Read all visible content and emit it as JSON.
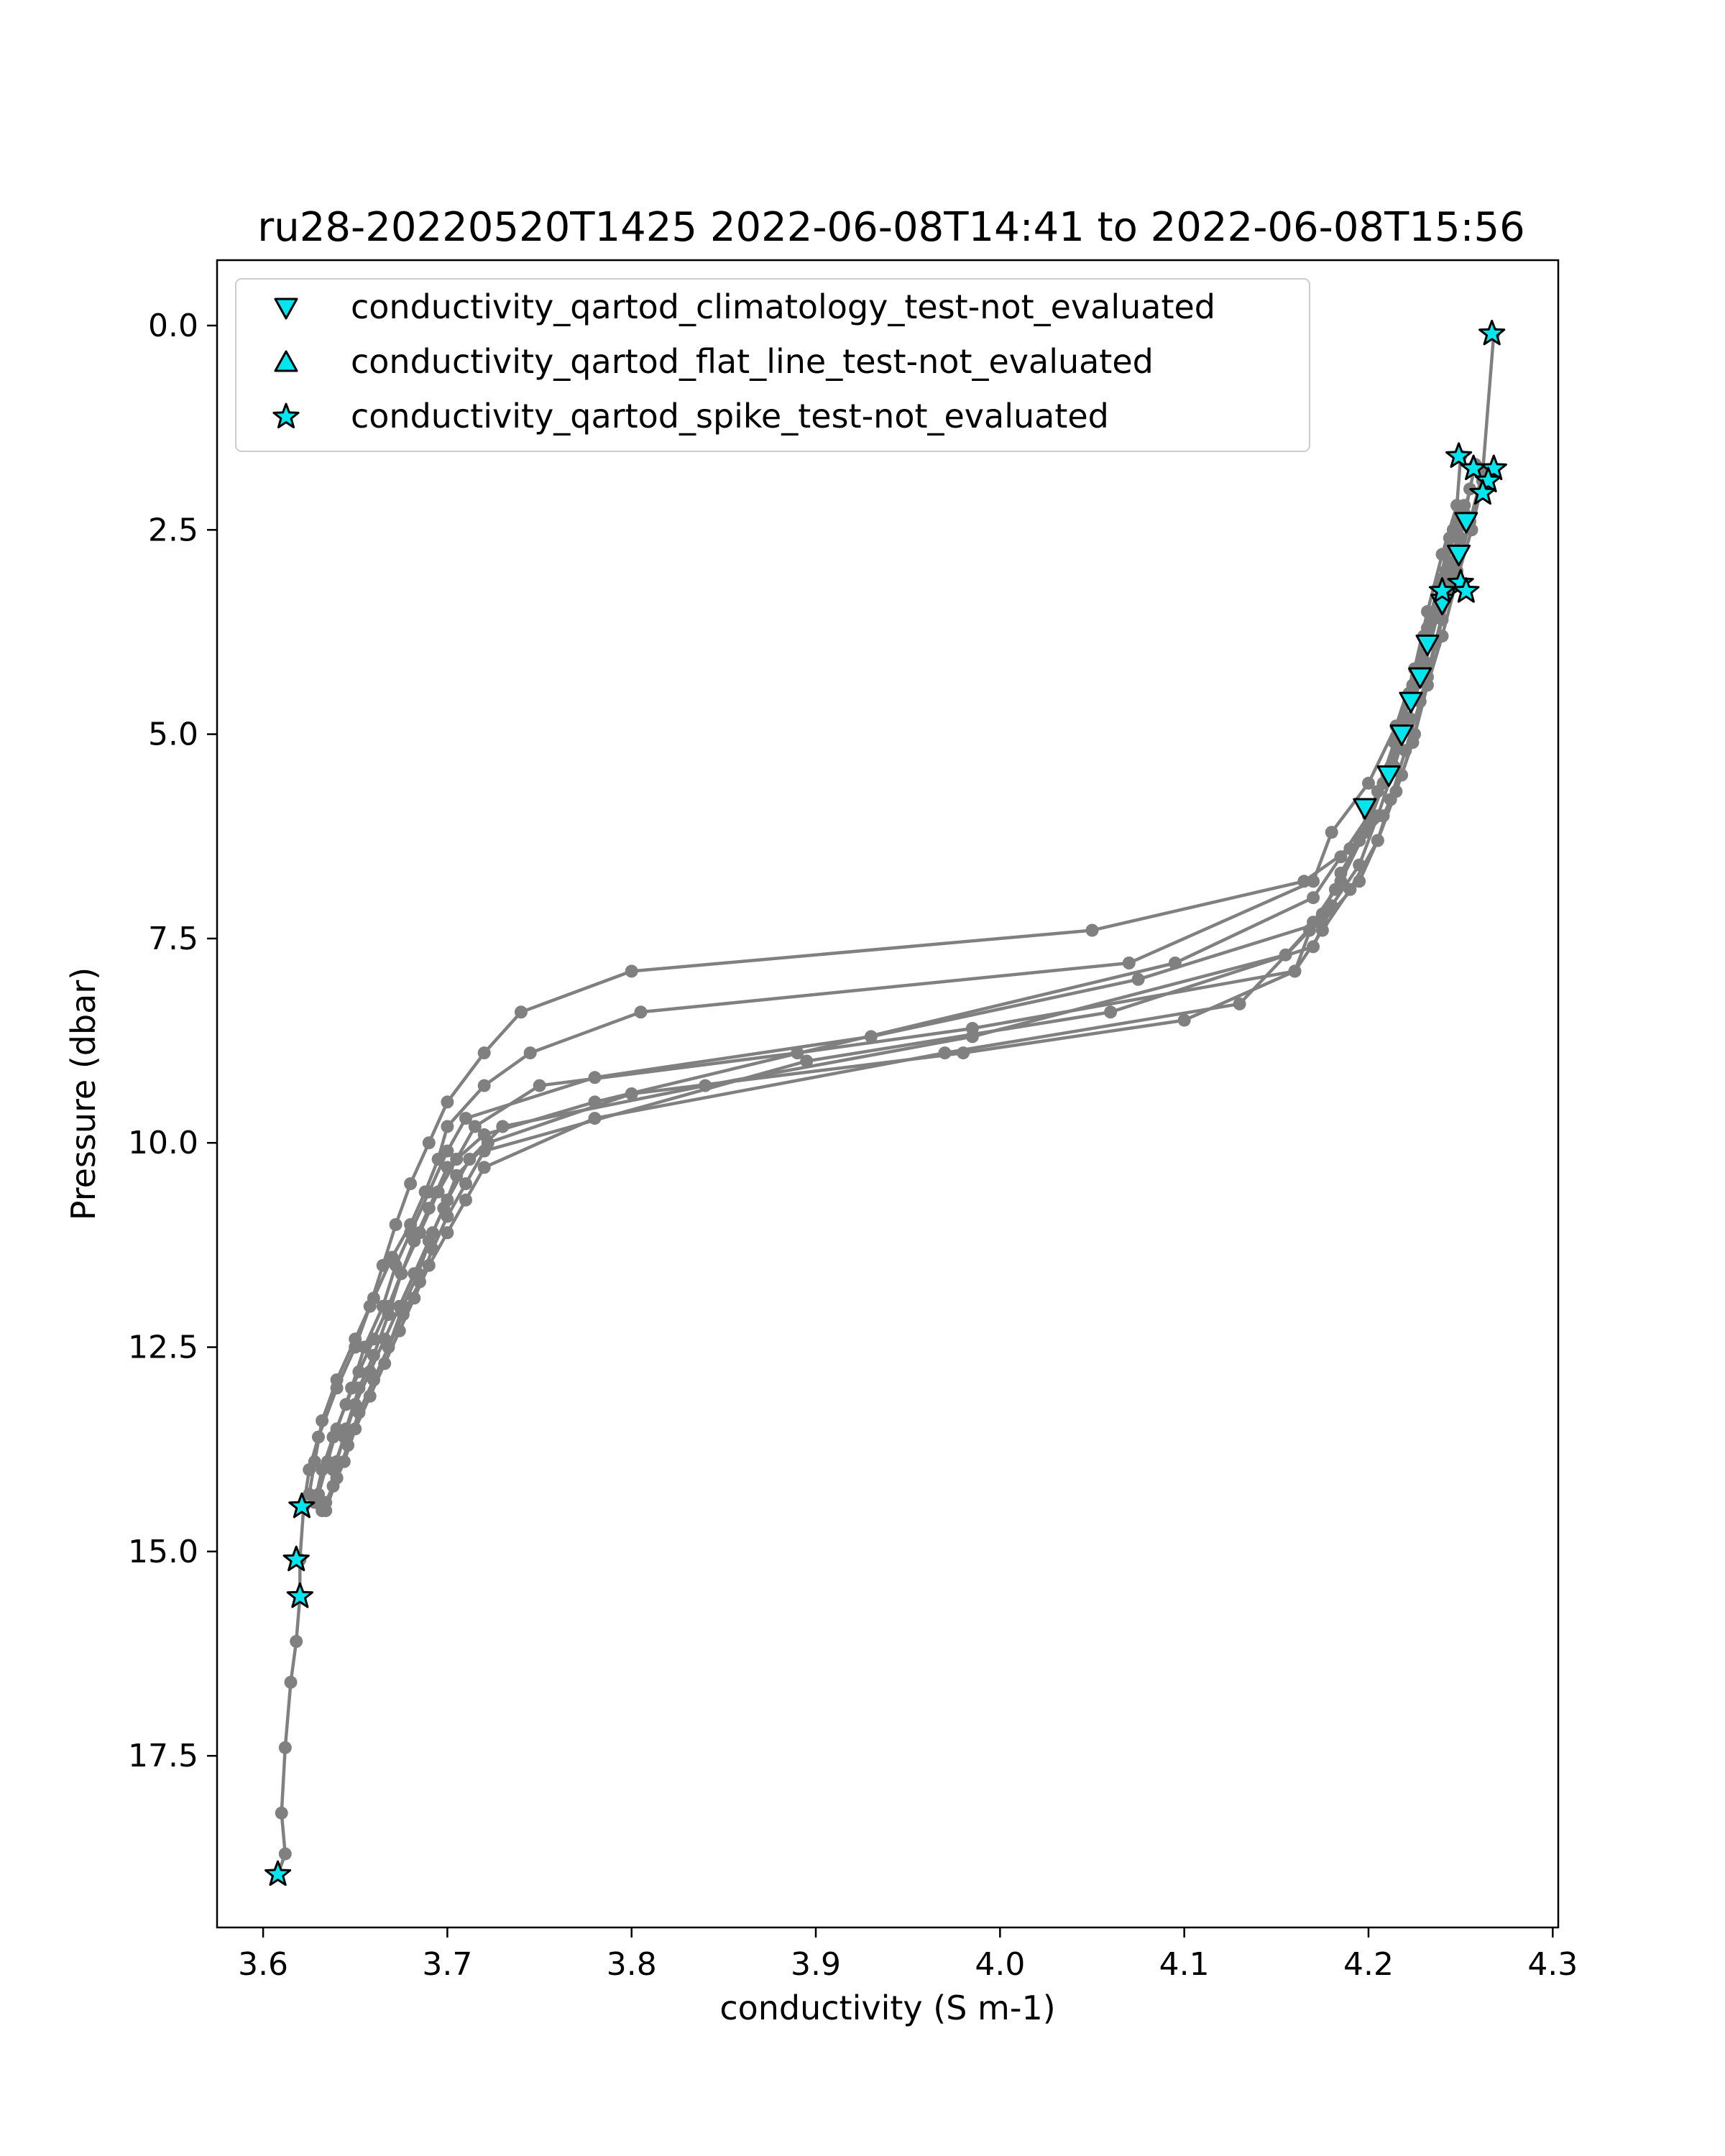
{
  "chart_data": {
    "type": "scatter",
    "title": "ru28-20220520T1425 2022-06-08T14:41 to 2022-06-08T15:56",
    "xlabel": "conductivity (S m-1)",
    "ylabel": "Pressure (dbar)",
    "xlim": [
      3.575,
      4.303
    ],
    "ylim": [
      19.6,
      -0.8
    ],
    "y_inverted": true,
    "xticks": [
      3.6,
      3.7,
      3.8,
      3.9,
      4.0,
      4.1,
      4.2,
      4.3
    ],
    "xtick_labels": [
      "3.6",
      "3.7",
      "3.8",
      "3.9",
      "4.0",
      "4.1",
      "4.2",
      "4.3"
    ],
    "yticks": [
      0.0,
      2.5,
      5.0,
      7.5,
      10.0,
      12.5,
      15.0,
      17.5
    ],
    "ytick_labels": [
      "0.0",
      "2.5",
      "5.0",
      "7.5",
      "10.0",
      "12.5",
      "15.0",
      "17.5"
    ],
    "grid": false,
    "legend_position": "upper-left",
    "colors": {
      "profile": "#808080",
      "flag_fill": "#00e5ee",
      "flag_edge": "#000000"
    },
    "legend": [
      {
        "label": "conductivity_qartod_climatology_test-not_evaluated",
        "marker": "triangle-down"
      },
      {
        "label": "conductivity_qartod_flat_line_test-not_evaluated",
        "marker": "triangle-up"
      },
      {
        "label": "conductivity_qartod_spike_test-not_evaluated",
        "marker": "star"
      }
    ],
    "profiles": [
      {
        "x": [
          4.268,
          4.262,
          4.255,
          4.248,
          4.24,
          4.232,
          4.225,
          4.218,
          4.208,
          4.19,
          4.165,
          4.05,
          3.8,
          3.74,
          3.72,
          3.7,
          3.69,
          3.68,
          3.672,
          3.665,
          3.658,
          3.65,
          3.64,
          3.63,
          3.625,
          3.622,
          3.62,
          3.62,
          3.618,
          3.615,
          3.612,
          3.61,
          3.612,
          3.608
        ],
        "y": [
          0.1,
          1.8,
          2.4,
          3.0,
          3.6,
          4.3,
          5.0,
          5.5,
          6.0,
          6.4,
          6.8,
          7.4,
          7.9,
          8.4,
          8.9,
          9.5,
          10.0,
          10.5,
          11.0,
          11.5,
          12.0,
          12.5,
          13.0,
          13.6,
          14.0,
          14.45,
          15.1,
          15.55,
          16.1,
          16.6,
          17.4,
          18.2,
          18.7,
          18.95
        ]
      },
      {
        "x": [
          4.25,
          4.248,
          4.24,
          4.232,
          4.225,
          4.215,
          4.2,
          4.18,
          4.17,
          4.07,
          3.805,
          3.745,
          3.72,
          3.7,
          3.695,
          3.688,
          3.68,
          3.67,
          3.66,
          3.65,
          3.64,
          3.632,
          3.628,
          3.625
        ],
        "y": [
          1.6,
          2.2,
          2.8,
          3.5,
          4.2,
          4.9,
          5.6,
          6.2,
          6.8,
          7.8,
          8.4,
          8.9,
          9.3,
          9.8,
          10.2,
          10.6,
          11.0,
          11.4,
          11.9,
          12.4,
          12.9,
          13.4,
          13.9,
          14.3
        ]
      },
      {
        "x": [
          4.258,
          4.252,
          4.246,
          4.238,
          4.23,
          4.222,
          4.212,
          4.2,
          4.185,
          4.17,
          4.095,
          3.78,
          3.72,
          3.7,
          3.69,
          3.682,
          3.675,
          3.668,
          3.66,
          3.652,
          3.645,
          3.638,
          3.632,
          3.628
        ],
        "y": [
          1.7,
          2.3,
          2.9,
          3.5,
          4.2,
          4.8,
          5.4,
          6.0,
          6.5,
          7.0,
          7.8,
          9.5,
          9.9,
          10.3,
          10.8,
          11.2,
          11.6,
          12.0,
          12.4,
          12.8,
          13.2,
          13.6,
          14.0,
          14.4
        ]
      },
      {
        "x": [
          4.262,
          4.256,
          4.248,
          4.24,
          4.232,
          4.224,
          4.215,
          4.205,
          4.195,
          4.175,
          4.075,
          3.93,
          3.78,
          3.71,
          3.7,
          3.69,
          3.68,
          3.672,
          3.665,
          3.655,
          3.648,
          3.64,
          3.635,
          3.63
        ],
        "y": [
          1.9,
          2.5,
          3.1,
          3.8,
          4.4,
          5.1,
          5.7,
          6.3,
          6.8,
          7.3,
          8.0,
          8.7,
          9.2,
          9.7,
          10.1,
          10.6,
          11.1,
          11.5,
          12.0,
          12.5,
          13.0,
          13.5,
          13.9,
          14.3
        ]
      },
      {
        "x": [
          4.255,
          4.25,
          4.244,
          4.236,
          4.228,
          4.22,
          4.212,
          4.205,
          4.19,
          4.175,
          4.16,
          3.985,
          3.89,
          3.75,
          3.715,
          3.705,
          3.695,
          3.685,
          3.675,
          3.668,
          3.66,
          3.652,
          3.645,
          3.64
        ],
        "y": [
          2.0,
          2.6,
          3.2,
          3.9,
          4.6,
          5.2,
          5.8,
          6.3,
          6.9,
          7.4,
          7.9,
          8.6,
          8.9,
          9.3,
          9.8,
          10.2,
          10.6,
          11.1,
          11.6,
          12.1,
          12.6,
          13.0,
          13.5,
          13.9
        ]
      },
      {
        "x": [
          4.252,
          4.245,
          4.238,
          4.23,
          4.222,
          4.214,
          4.205,
          4.195,
          4.18,
          4.17,
          4.06,
          3.895,
          3.72,
          3.71,
          3.7,
          3.692,
          3.685,
          3.676,
          3.668,
          3.66,
          3.652,
          3.646,
          3.64,
          3.634
        ],
        "y": [
          2.2,
          2.9,
          3.5,
          4.1,
          4.8,
          5.4,
          6.0,
          6.6,
          7.1,
          7.6,
          8.4,
          9.0,
          10.1,
          10.5,
          10.9,
          11.3,
          11.7,
          12.1,
          12.5,
          12.9,
          13.3,
          13.7,
          14.1,
          14.5
        ]
      },
      {
        "x": [
          4.248,
          4.242,
          4.234,
          4.226,
          4.218,
          4.21,
          4.2,
          4.185,
          4.175,
          4.155,
          3.985,
          3.84,
          3.73,
          3.712,
          3.7,
          3.692,
          3.684,
          3.676,
          3.668,
          3.66,
          3.652,
          3.646,
          3.64,
          3.634
        ],
        "y": [
          2.4,
          3.0,
          3.6,
          4.3,
          4.9,
          5.5,
          6.1,
          6.7,
          7.2,
          7.7,
          8.7,
          9.3,
          9.8,
          10.2,
          10.7,
          11.1,
          11.6,
          12.0,
          12.5,
          12.9,
          13.3,
          13.7,
          14.1,
          14.4
        ]
      },
      {
        "x": [
          4.246,
          4.24,
          4.232,
          4.224,
          4.216,
          4.208,
          4.198,
          4.185,
          4.17,
          4.16,
          4.1,
          3.98,
          3.8,
          3.722,
          3.705,
          3.698,
          3.69,
          3.682,
          3.674,
          3.666,
          3.658,
          3.65,
          3.644,
          3.638
        ],
        "y": [
          2.5,
          3.1,
          3.7,
          4.4,
          5.0,
          5.6,
          6.2,
          6.8,
          7.3,
          7.9,
          8.5,
          8.9,
          9.4,
          10.0,
          10.4,
          10.8,
          11.2,
          11.6,
          12.0,
          12.4,
          12.8,
          13.2,
          13.6,
          14.0
        ]
      },
      {
        "x": [
          4.244,
          4.238,
          4.23,
          4.222,
          4.214,
          4.205,
          4.195,
          4.182,
          4.168,
          4.13,
          3.97,
          3.78,
          3.72,
          3.71,
          3.7,
          3.69,
          3.682,
          3.674,
          3.666,
          3.658,
          3.65,
          3.644,
          3.638,
          3.632
        ],
        "y": [
          2.6,
          3.2,
          3.8,
          4.5,
          5.1,
          5.7,
          6.3,
          6.9,
          7.4,
          8.3,
          8.9,
          9.7,
          10.3,
          10.7,
          11.1,
          11.5,
          11.9,
          12.3,
          12.7,
          13.1,
          13.5,
          13.9,
          14.2,
          14.5
        ]
      }
    ],
    "climatology_markers": [
      {
        "x": 4.253,
        "y": 2.4
      },
      {
        "x": 4.249,
        "y": 2.8
      },
      {
        "x": 4.24,
        "y": 3.4
      },
      {
        "x": 4.232,
        "y": 3.9
      },
      {
        "x": 4.228,
        "y": 4.3
      },
      {
        "x": 4.223,
        "y": 4.6
      },
      {
        "x": 4.218,
        "y": 5.0
      },
      {
        "x": 4.211,
        "y": 5.5
      },
      {
        "x": 4.198,
        "y": 5.9
      }
    ],
    "spike_markers": [
      {
        "x": 4.267,
        "y": 0.1
      },
      {
        "x": 4.249,
        "y": 1.6
      },
      {
        "x": 4.257,
        "y": 1.75
      },
      {
        "x": 4.268,
        "y": 1.75
      },
      {
        "x": 4.265,
        "y": 1.9
      },
      {
        "x": 4.262,
        "y": 2.05
      },
      {
        "x": 4.24,
        "y": 3.25
      },
      {
        "x": 4.25,
        "y": 3.15
      },
      {
        "x": 4.253,
        "y": 3.25
      },
      {
        "x": 3.621,
        "y": 14.45
      },
      {
        "x": 3.618,
        "y": 15.1
      },
      {
        "x": 3.62,
        "y": 15.55
      },
      {
        "x": 3.608,
        "y": 18.95
      }
    ]
  }
}
